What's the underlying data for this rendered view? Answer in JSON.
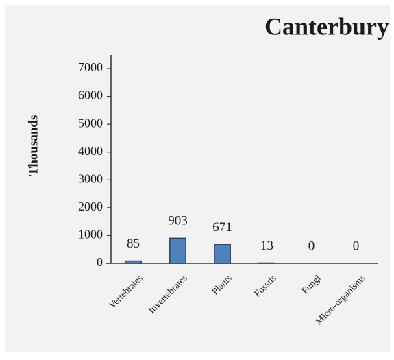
{
  "chart_data": {
    "type": "bar",
    "title": "Canterbury",
    "y_label": "Thousands",
    "categories": [
      "Vertebrates",
      "Invertebrates",
      "Plants",
      "Fossils",
      "Fungi",
      "Micro-organisms"
    ],
    "values": [
      85,
      903,
      671,
      13,
      0,
      0
    ],
    "color": "#4f81bd",
    "ylim": [
      0,
      7000
    ],
    "yticks": [
      0,
      1000,
      2000,
      3000,
      4000,
      5000,
      6000,
      7000
    ],
    "grid": false
  }
}
